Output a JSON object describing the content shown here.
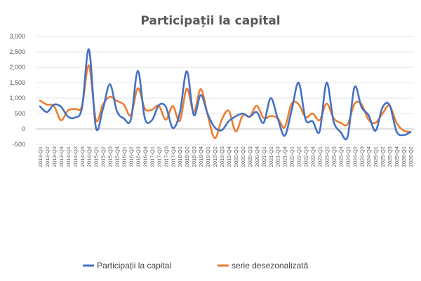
{
  "chart_data": {
    "type": "line",
    "title": "Participații la capital",
    "xlabel": "",
    "ylabel": "",
    "ylim": [
      -500,
      3000
    ],
    "yticks": [
      "3,000",
      "2,500",
      "2,000",
      "1,500",
      "1,000",
      "500",
      "0",
      "-500"
    ],
    "ytick_values": [
      3000,
      2500,
      2000,
      1500,
      1000,
      500,
      0,
      -500
    ],
    "grid": true,
    "legend_position": "bottom",
    "categories": [
      "2013-Q1",
      "2013-Q2",
      "2013-Q3",
      "2013-Q4",
      "2014-Q1",
      "2014-Q2",
      "2014-Q3",
      "2014-Q4",
      "2015-Q1",
      "2015-Q2",
      "2015-Q3",
      "2015-Q4",
      "2016-Q1",
      "2016-Q2",
      "2016-Q3",
      "2016-Q4",
      "2017-Q1",
      "2017-Q2",
      "2017-Q3",
      "2017-Q4",
      "2018-Q1",
      "2018-Q2",
      "2018-Q3",
      "2018-Q4",
      "2019-Q1",
      "2019-Q2",
      "2019-Q3",
      "2019-Q4",
      "2020-Q1",
      "2020-Q2",
      "2020-Q3",
      "2020-Q4",
      "2021-Q1",
      "2021-Q2",
      "2021-Q3",
      "2021-Q4",
      "2022-Q1",
      "2022-Q2",
      "2022-Q3",
      "2022-Q4",
      "2023-Q1",
      "2023-Q2",
      "2023-Q3",
      "2023-Q4",
      "2024-Q1",
      "2024-Q2",
      "2024-Q3",
      "2024-Q4",
      "2025-Q1",
      "2025-Q2",
      "2025-Q3",
      "2025-Q4",
      "2026-Q1",
      "2026-Q2"
    ],
    "series": [
      {
        "name": "Participații la capital",
        "color": "#4472C4",
        "values": [
          730,
          550,
          790,
          720,
          400,
          370,
          680,
          2580,
          40,
          640,
          1450,
          580,
          340,
          300,
          1880,
          350,
          280,
          770,
          720,
          30,
          520,
          1870,
          450,
          1100,
          480,
          50,
          -40,
          250,
          410,
          500,
          400,
          550,
          200,
          1000,
          350,
          -220,
          600,
          1500,
          300,
          250,
          -80,
          1500,
          250,
          -100,
          -250,
          1360,
          700,
          450,
          -60,
          700,
          780,
          -80,
          -200,
          -100
        ]
      },
      {
        "name": "serie desezonalizată",
        "color": "#ED7D31",
        "values": [
          920,
          790,
          750,
          280,
          600,
          650,
          740,
          2060,
          290,
          790,
          1040,
          910,
          790,
          440,
          1320,
          660,
          620,
          750,
          300,
          740,
          260,
          1310,
          550,
          1290,
          440,
          -300,
          300,
          590,
          -80,
          440,
          400,
          750,
          350,
          420,
          350,
          50,
          820,
          800,
          380,
          500,
          280,
          820,
          350,
          200,
          150,
          820,
          800,
          300,
          200,
          500,
          750,
          200,
          -50,
          -100
        ]
      }
    ]
  }
}
